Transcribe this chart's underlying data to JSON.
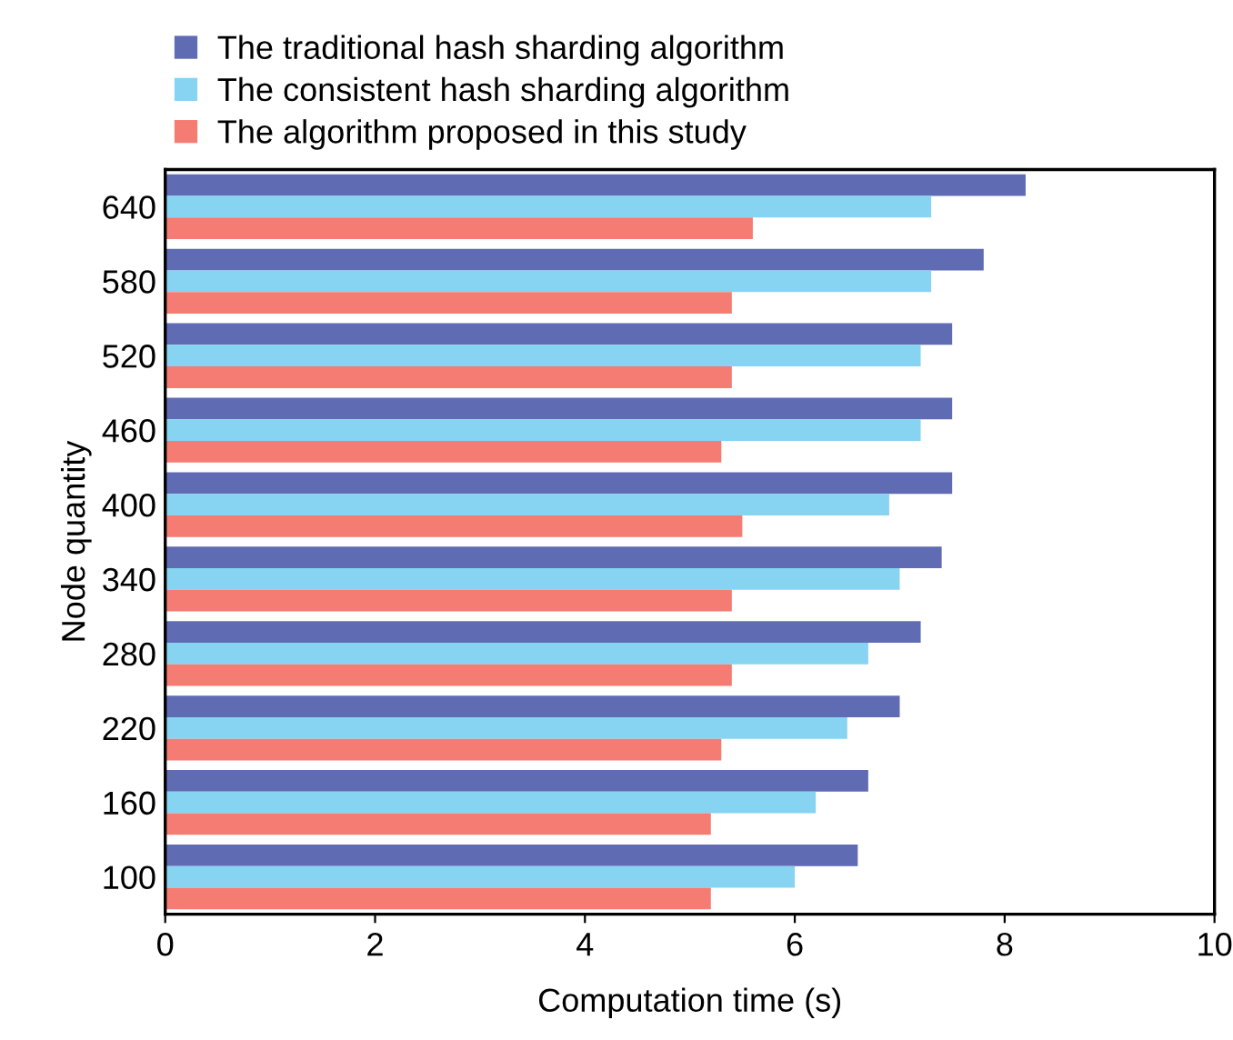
{
  "chart_data": {
    "type": "bar",
    "orientation": "horizontal",
    "xlabel": "Computation time (s)",
    "ylabel": "Node quantity",
    "categories": [
      "640",
      "580",
      "520",
      "460",
      "400",
      "340",
      "280",
      "220",
      "160",
      "100"
    ],
    "series": [
      {
        "name": "The traditional hash sharding algorithm",
        "color": "#5f6bb3",
        "values": [
          8.2,
          7.8,
          7.5,
          7.5,
          7.5,
          7.4,
          7.2,
          7.0,
          6.7,
          6.6
        ]
      },
      {
        "name": "The consistent hash sharding algorithm",
        "color": "#87d3f2",
        "values": [
          7.3,
          7.3,
          7.2,
          7.2,
          6.9,
          7.0,
          6.7,
          6.5,
          6.2,
          6.0
        ]
      },
      {
        "name": "The algorithm proposed in this study",
        "color": "#f47c72",
        "values": [
          5.6,
          5.4,
          5.4,
          5.3,
          5.5,
          5.4,
          5.4,
          5.3,
          5.2,
          5.2
        ]
      }
    ],
    "xlim": [
      0,
      10
    ],
    "xticks": [
      0,
      2,
      4,
      6,
      8,
      10
    ],
    "grid": false,
    "legend": "top left"
  }
}
